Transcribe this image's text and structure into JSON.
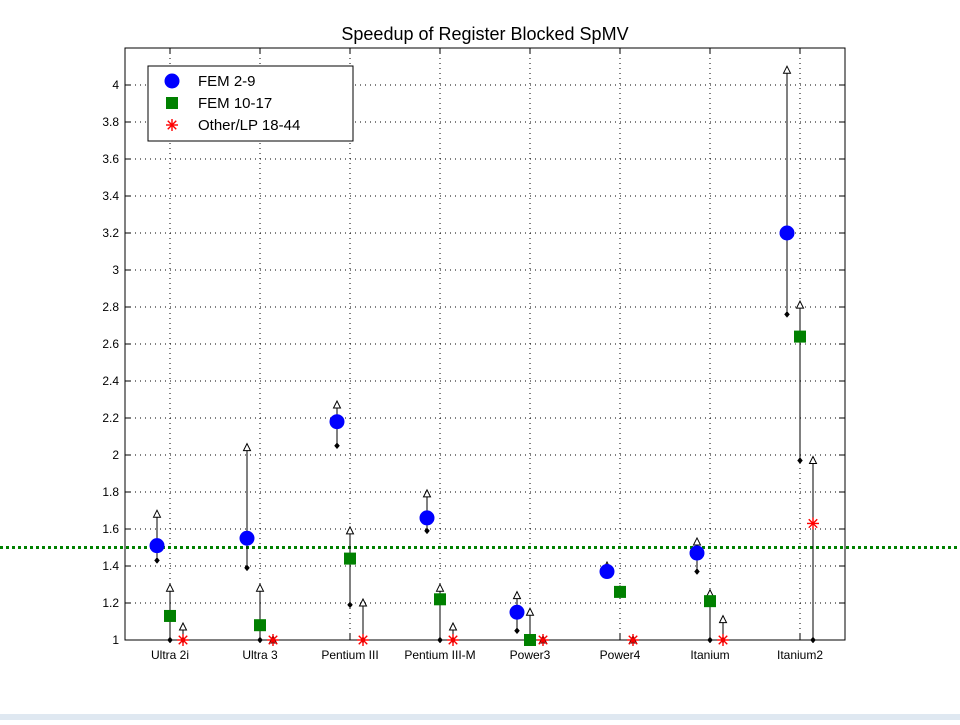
{
  "chart_data": {
    "type": "scatter",
    "title": "Speedup of Register Blocked SpMV",
    "xlabel": "",
    "ylabel": "",
    "categories": [
      "Ultra 2i",
      "Ultra 3",
      "Pentium III",
      "Pentium III-M",
      "Power3",
      "Power4",
      "Itanium",
      "Itanium2"
    ],
    "ylim": [
      1,
      4.2
    ],
    "yticks": [
      1,
      1.2,
      1.4,
      1.6,
      1.8,
      2,
      2.2,
      2.4,
      2.6,
      2.8,
      3,
      3.2,
      3.4,
      3.6,
      3.8,
      4
    ],
    "grid": true,
    "legend_position": "top-left",
    "reference_line": {
      "y": 1.5,
      "color": "#008000",
      "style": "dotted"
    },
    "series": [
      {
        "name": "FEM 2-9",
        "marker": "circle",
        "color": "#0000ff",
        "values": [
          1.51,
          1.55,
          2.18,
          1.66,
          1.15,
          1.37,
          1.47,
          3.2
        ],
        "min": [
          1.43,
          1.39,
          2.05,
          1.59,
          1.05,
          1.35,
          1.37,
          2.76
        ],
        "max": [
          1.68,
          2.04,
          2.27,
          1.79,
          1.24,
          1.4,
          1.53,
          4.08
        ]
      },
      {
        "name": "FEM 10-17",
        "marker": "square",
        "color": "#008000",
        "values": [
          1.13,
          1.08,
          1.44,
          1.22,
          1.0,
          1.26,
          1.21,
          2.64
        ],
        "min": [
          1.0,
          1.0,
          1.19,
          1.0,
          1.0,
          1.25,
          1.0,
          1.97
        ],
        "max": [
          1.28,
          1.28,
          1.59,
          1.28,
          1.15,
          1.27,
          1.25,
          2.81
        ]
      },
      {
        "name": "Other/LP 18-44",
        "marker": "star",
        "color": "#ff0000",
        "values": [
          1.0,
          1.0,
          1.0,
          1.0,
          1.0,
          1.0,
          1.0,
          1.63
        ],
        "min": [
          1.0,
          1.0,
          1.0,
          1.0,
          1.0,
          1.0,
          1.0,
          1.0
        ],
        "max": [
          1.07,
          1.0,
          1.2,
          1.07,
          1.0,
          1.0,
          1.11,
          1.97
        ]
      }
    ]
  }
}
